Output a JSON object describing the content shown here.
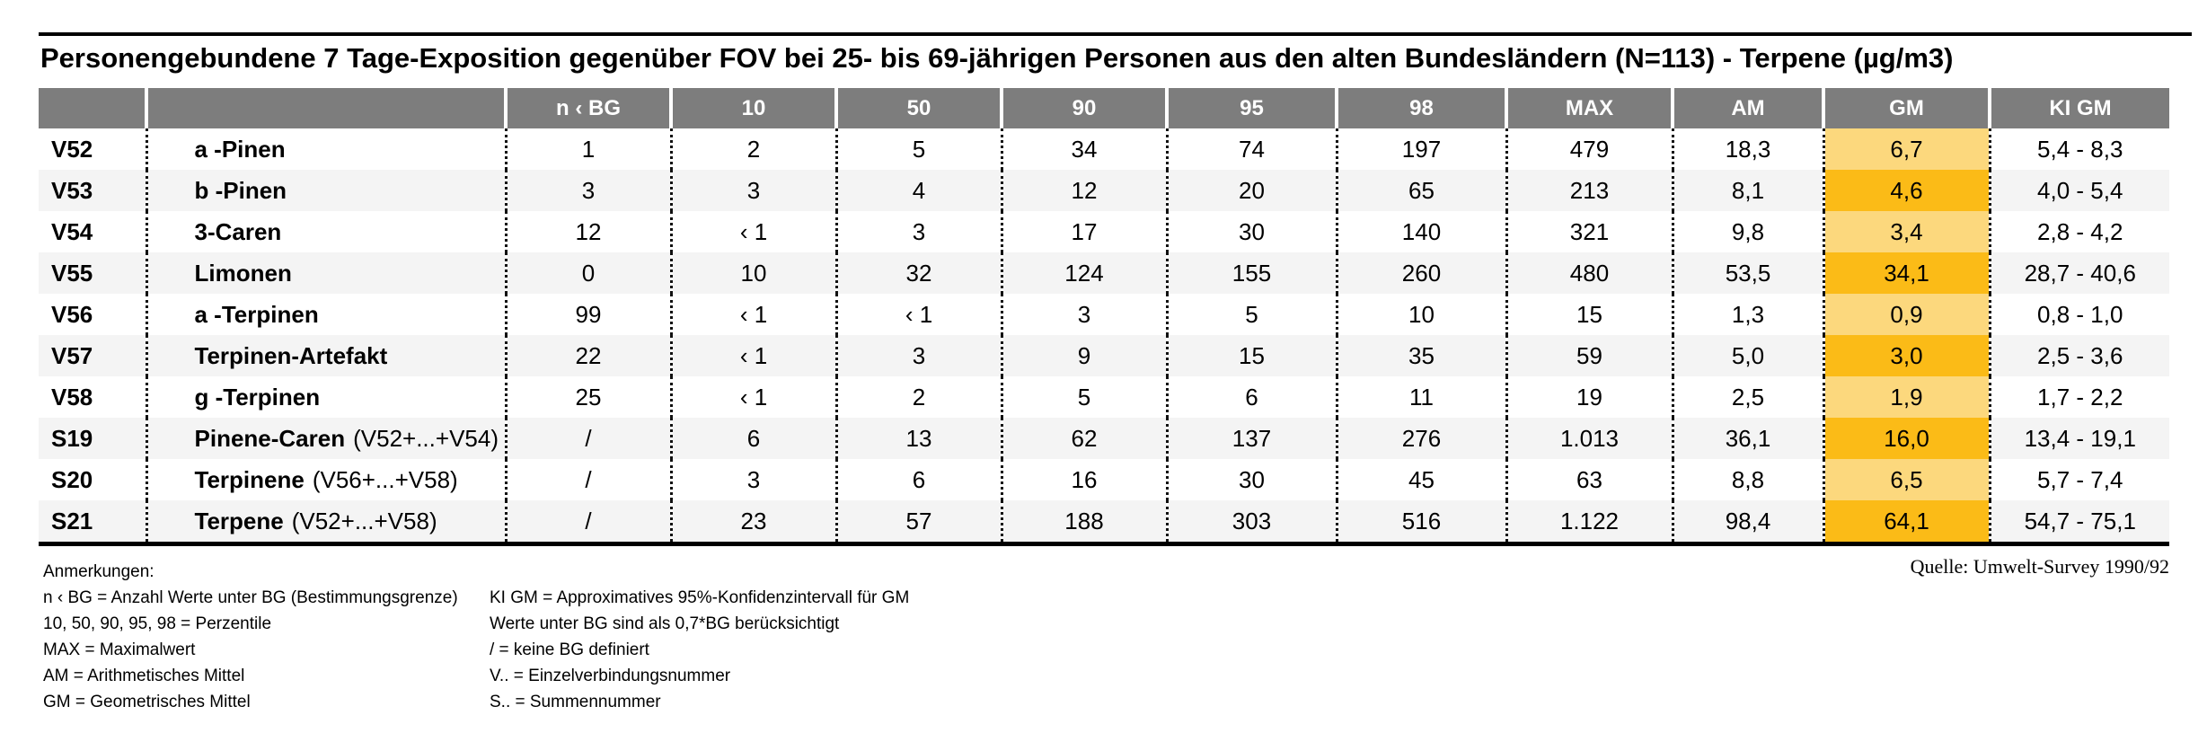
{
  "title": "Personengebundene 7 Tage-Exposition gegenüber FOV bei 25- bis 69-jährigen Personen aus den alten Bundesländern (N=113) - Terpene (µg/m3)",
  "source": "Quelle: Umwelt-Survey 1990/92",
  "colors": {
    "header_bg": "#7d7d7d",
    "row_stripe": "#f4f4f4",
    "gm_highlight_light": "#fcd87d",
    "gm_highlight_dark": "#fbbb17"
  },
  "table": {
    "headers": [
      "",
      "",
      "n ‹ BG",
      "10",
      "50",
      "90",
      "95",
      "98",
      "MAX",
      "AM",
      "GM",
      "KI GM"
    ],
    "rows": [
      {
        "id": "V52",
        "name": "a -Pinen",
        "suffix": "",
        "values": [
          "1",
          "2",
          "5",
          "34",
          "74",
          "197",
          "479",
          "18,3",
          "6,7",
          "5,4 - 8,3"
        ]
      },
      {
        "id": "V53",
        "name": "b -Pinen",
        "suffix": "",
        "values": [
          "3",
          "3",
          "4",
          "12",
          "20",
          "65",
          "213",
          "8,1",
          "4,6",
          "4,0 - 5,4"
        ]
      },
      {
        "id": "V54",
        "name": "3-Caren",
        "suffix": "",
        "values": [
          "12",
          "‹ 1",
          "3",
          "17",
          "30",
          "140",
          "321",
          "9,8",
          "3,4",
          "2,8 - 4,2"
        ]
      },
      {
        "id": "V55",
        "name": "Limonen",
        "suffix": "",
        "values": [
          "0",
          "10",
          "32",
          "124",
          "155",
          "260",
          "480",
          "53,5",
          "34,1",
          "28,7 - 40,6"
        ]
      },
      {
        "id": "V56",
        "name": "a -Terpinen",
        "suffix": "",
        "values": [
          "99",
          "‹ 1",
          "‹ 1",
          "3",
          "5",
          "10",
          "15",
          "1,3",
          "0,9",
          "0,8 - 1,0"
        ]
      },
      {
        "id": "V57",
        "name": "Terpinen-Artefakt",
        "suffix": "",
        "values": [
          "22",
          "‹ 1",
          "3",
          "9",
          "15",
          "35",
          "59",
          "5,0",
          "3,0",
          "2,5 - 3,6"
        ]
      },
      {
        "id": "V58",
        "name": "g -Terpinen",
        "suffix": "",
        "values": [
          "25",
          "‹ 1",
          "2",
          "5",
          "6",
          "11",
          "19",
          "2,5",
          "1,9",
          "1,7 - 2,2"
        ]
      },
      {
        "id": "S19",
        "name": "Pinene-Caren",
        "suffix": "(V52+...+V54)",
        "values": [
          "/",
          "6",
          "13",
          "62",
          "137",
          "276",
          "1.013",
          "36,1",
          "16,0",
          "13,4 - 19,1"
        ]
      },
      {
        "id": "S20",
        "name": "Terpinene",
        "suffix": "(V56+...+V58)",
        "values": [
          "/",
          "3",
          "6",
          "16",
          "30",
          "45",
          "63",
          "8,8",
          "6,5",
          "5,7 - 7,4"
        ]
      },
      {
        "id": "S21",
        "name": "Terpene",
        "suffix": "(V52+...+V58)",
        "values": [
          "/",
          "23",
          "57",
          "188",
          "303",
          "516",
          "1.122",
          "98,4",
          "64,1",
          "54,7 - 75,1"
        ]
      }
    ]
  },
  "footnotes": {
    "heading": "Anmerkungen:",
    "left": [
      "n ‹ BG = Anzahl Werte unter BG (Bestimmungsgrenze)",
      "10, 50, 90, 95, 98 = Perzentile",
      "MAX = Maximalwert",
      "AM = Arithmetisches Mittel",
      "GM = Geometrisches Mittel"
    ],
    "right": [
      "KI GM = Approximatives 95%-Konfidenzintervall für GM",
      "Werte unter BG sind als 0,7*BG berücksichtigt",
      "/ = keine BG definiert",
      "V.. = Einzelverbindungsnummer",
      "S.. = Summennummer"
    ]
  }
}
